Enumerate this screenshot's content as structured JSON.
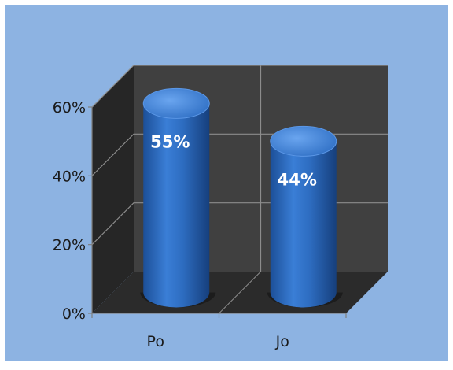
{
  "chart_data": {
    "type": "bar",
    "style": "3d-cylinder",
    "categories": [
      "Po",
      "Jo"
    ],
    "values": [
      55,
      44
    ],
    "data_labels": [
      "55%",
      "44%"
    ],
    "ylim": [
      0,
      60
    ],
    "yticks": [
      0,
      20,
      40,
      60
    ],
    "ytick_labels": [
      "0%",
      "20%",
      "40%",
      "60%"
    ],
    "grid": true,
    "legend": "none",
    "colors": {
      "background": "#8db3e2",
      "back_wall": "#404040",
      "side_wall": "#262626",
      "floor": "#2b2b2b",
      "gridline": "#8c8c8c",
      "bar": "#2d6cc0",
      "bar_top": "#4a8be0",
      "label": "#ffffff",
      "axis_text": "#1a1a1a"
    }
  }
}
